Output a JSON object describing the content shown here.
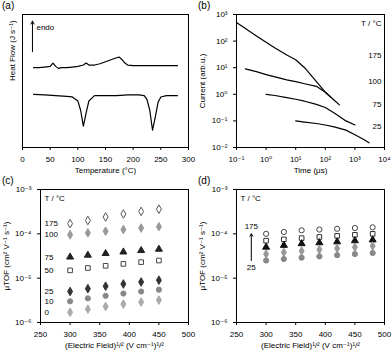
{
  "chart_data": [
    {
      "type": "line",
      "title": "(a)",
      "xlabel": "Temperature (°C)",
      "ylabel": "Heat Flow (J s⁻¹)",
      "annotations": [
        "endo"
      ],
      "xlim": [
        0,
        300
      ],
      "xticks": [
        0,
        50,
        100,
        150,
        200,
        250,
        300
      ],
      "ylim": [
        0,
        10
      ],
      "yticks": [],
      "tick_labels": "x",
      "series": [
        {
          "color": "#000000",
          "x": [
            20,
            30,
            40,
            50,
            55,
            60,
            65,
            70,
            80,
            90,
            100,
            110,
            115,
            120,
            130,
            140,
            150,
            160,
            170,
            175,
            180,
            185,
            190,
            200,
            220,
            240,
            260,
            280
          ],
          "values": [
            6.0,
            6.0,
            6.05,
            6.1,
            6.35,
            6.1,
            5.95,
            6.0,
            6.0,
            6.05,
            6.1,
            6.2,
            6.35,
            6.2,
            6.2,
            6.3,
            6.45,
            6.6,
            6.75,
            6.8,
            6.6,
            6.35,
            6.2,
            6.15,
            6.15,
            6.15,
            6.15,
            6.15
          ]
        },
        {
          "color": "#000000",
          "x": [
            20,
            40,
            60,
            80,
            90,
            100,
            105,
            110,
            115,
            120,
            130,
            150,
            170,
            190,
            210,
            220,
            225,
            230,
            235,
            240,
            245,
            250,
            260,
            280
          ],
          "values": [
            4.0,
            3.95,
            3.9,
            3.85,
            3.8,
            3.5,
            2.8,
            1.6,
            2.6,
            3.5,
            3.9,
            3.9,
            3.9,
            3.95,
            3.95,
            3.9,
            3.6,
            2.8,
            1.3,
            2.3,
            3.4,
            3.8,
            3.9,
            3.9
          ]
        }
      ]
    },
    {
      "type": "line",
      "title": "(b)",
      "xlabel": "Time (μs)",
      "ylabel": "Current (arb.u.)",
      "log": true,
      "annotations": [
        "T / °C"
      ],
      "xlim": [
        0.1,
        10000
      ],
      "xticks": [
        {
          "value": 0.1,
          "label": "10⁻¹"
        },
        {
          "value": 1,
          "label": "10⁰"
        },
        {
          "value": 10,
          "label": "10¹"
        },
        {
          "value": 100,
          "label": "10²"
        },
        {
          "value": 1000,
          "label": "10³"
        },
        {
          "value": 10000,
          "label": "10⁴"
        }
      ],
      "ylim": [
        0.01,
        1000
      ],
      "yticks": [
        {
          "value": 0.01,
          "label": "10⁻²"
        },
        {
          "value": 0.1,
          "label": "10⁻¹"
        },
        {
          "value": 1,
          "label": "10⁰"
        },
        {
          "value": 10,
          "label": "10¹"
        },
        {
          "value": 100,
          "label": "10²"
        },
        {
          "value": 1000,
          "label": "10³"
        }
      ],
      "series": [
        {
          "name": "175",
          "color": "#000000",
          "x": [
            0.1,
            0.2,
            0.5,
            1,
            2,
            5,
            10,
            20,
            50,
            100,
            150
          ],
          "values": [
            500,
            300,
            150,
            90,
            55,
            30,
            20,
            10,
            3,
            1.2,
            0.8
          ]
        },
        {
          "name": "100",
          "color": "#000000",
          "x": [
            0.2,
            0.5,
            1,
            2,
            5,
            10,
            20,
            50,
            100,
            200,
            300
          ],
          "values": [
            9,
            7,
            5.5,
            4.5,
            3.5,
            3,
            2.5,
            2,
            1.2,
            0.6,
            0.4
          ]
        },
        {
          "name": "75",
          "color": "#000000",
          "x": [
            1,
            2,
            5,
            10,
            20,
            50,
            100,
            200,
            500,
            1000
          ],
          "values": [
            1,
            0.9,
            0.75,
            0.65,
            0.55,
            0.42,
            0.32,
            0.2,
            0.1,
            0.07
          ]
        },
        {
          "name": "25",
          "color": "#000000",
          "x": [
            10,
            20,
            50,
            100,
            200,
            500,
            1000,
            2000,
            3000
          ],
          "values": [
            0.1,
            0.09,
            0.08,
            0.07,
            0.06,
            0.045,
            0.03,
            0.02,
            0.015
          ]
        }
      ]
    },
    {
      "type": "scatter",
      "title": "(c)",
      "xlabel": "(Electric Field)¹/² (V cm⁻¹)¹/²",
      "ylabel": "μTOF (cm² V⁻¹ s⁻¹)",
      "log": "y",
      "annotations": [
        "T / °C"
      ],
      "xlim": [
        250,
        500
      ],
      "xticks": [
        250,
        300,
        350,
        400,
        450,
        500
      ],
      "ylim": [
        1e-06,
        0.001
      ],
      "yticks": [
        {
          "value": 1e-06,
          "label": "10⁻⁶"
        },
        {
          "value": 1e-05,
          "label": "10⁻⁵"
        },
        {
          "value": 0.0001,
          "label": "10⁻⁴"
        },
        {
          "value": 0.001,
          "label": "10⁻³"
        }
      ],
      "x": [
        300,
        330,
        360,
        390,
        420,
        450
      ],
      "series": [
        {
          "name": "175",
          "color": "#555555",
          "marker": "diamond-open",
          "values": [
            0.00017,
            0.0002,
            0.00024,
            0.00028,
            0.00032,
            0.00036
          ]
        },
        {
          "name": "100",
          "color": "#999999",
          "marker": "diamond",
          "values": [
            9.5e-05,
            0.000105,
            0.000115,
            0.000125,
            0.000135,
            0.000145
          ]
        },
        {
          "name": "75",
          "color": "#222222",
          "marker": "triangle",
          "values": [
            3e-05,
            3.3e-05,
            3.6e-05,
            3.9e-05,
            4.2e-05,
            4.5e-05
          ]
        },
        {
          "name": "50",
          "color": "#444444",
          "marker": "square-open",
          "values": [
            1.5e-05,
            1.7e-05,
            1.9e-05,
            2.1e-05,
            2.3e-05,
            2.5e-05
          ]
        },
        {
          "name": "25",
          "color": "#333333",
          "marker": "diamond",
          "values": [
            5e-06,
            5.8e-06,
            6.6e-06,
            7.4e-06,
            8.2e-06,
            9e-06
          ]
        },
        {
          "name": "10",
          "color": "#888888",
          "marker": "circle",
          "values": [
            3e-06,
            3.5e-06,
            4e-06,
            4.5e-06,
            5e-06,
            5.5e-06
          ]
        },
        {
          "name": "0",
          "color": "#aaaaaa",
          "marker": "diamond",
          "values": [
            1.7e-06,
            2e-06,
            2.3e-06,
            2.6e-06,
            2.9e-06,
            3.2e-06
          ]
        }
      ]
    },
    {
      "type": "scatter",
      "title": "(d)",
      "xlabel": "(Electric Field)¹/² (V cm⁻¹)¹/²",
      "ylabel": "μTOF (cm² V⁻¹ s⁻¹)",
      "log": "y",
      "annotations": [
        "T / °C"
      ],
      "xlim": [
        250,
        500
      ],
      "xticks": [
        250,
        300,
        350,
        400,
        450,
        500
      ],
      "ylim": [
        1e-06,
        0.001
      ],
      "yticks": [
        {
          "value": 1e-06,
          "label": "10⁻⁶"
        },
        {
          "value": 1e-05,
          "label": "10⁻⁵"
        },
        {
          "value": 0.0001,
          "label": "10⁻⁴"
        },
        {
          "value": 0.001,
          "label": "10⁻³"
        }
      ],
      "x": [
        300,
        330,
        360,
        390,
        420,
        450,
        480
      ],
      "series": [
        {
          "name": "175",
          "color": "#444444",
          "marker": "circle-open",
          "values": [
            0.0001,
            0.00011,
            0.00012,
            0.000125,
            0.00013,
            0.000135,
            0.00014
          ]
        },
        {
          "color": "#333333",
          "marker": "square-open",
          "values": [
            7e-05,
            7.5e-05,
            8e-05,
            8.5e-05,
            9e-05,
            9.5e-05,
            0.0001
          ]
        },
        {
          "color": "#111111",
          "marker": "triangle",
          "values": [
            5e-05,
            5.5e-05,
            6e-05,
            6.3e-05,
            6.6e-05,
            7e-05,
            7.3e-05
          ]
        },
        {
          "color": "#999999",
          "marker": "diamond",
          "values": [
            3.5e-05,
            3.8e-05,
            4.1e-05,
            4.4e-05,
            4.7e-05,
            5e-05,
            5.3e-05
          ]
        },
        {
          "name": "25",
          "color": "#888888",
          "marker": "circle",
          "values": [
            2.5e-05,
            2.7e-05,
            2.9e-05,
            3.1e-05,
            3.3e-05,
            3.5e-05,
            3.7e-05
          ]
        }
      ]
    }
  ]
}
